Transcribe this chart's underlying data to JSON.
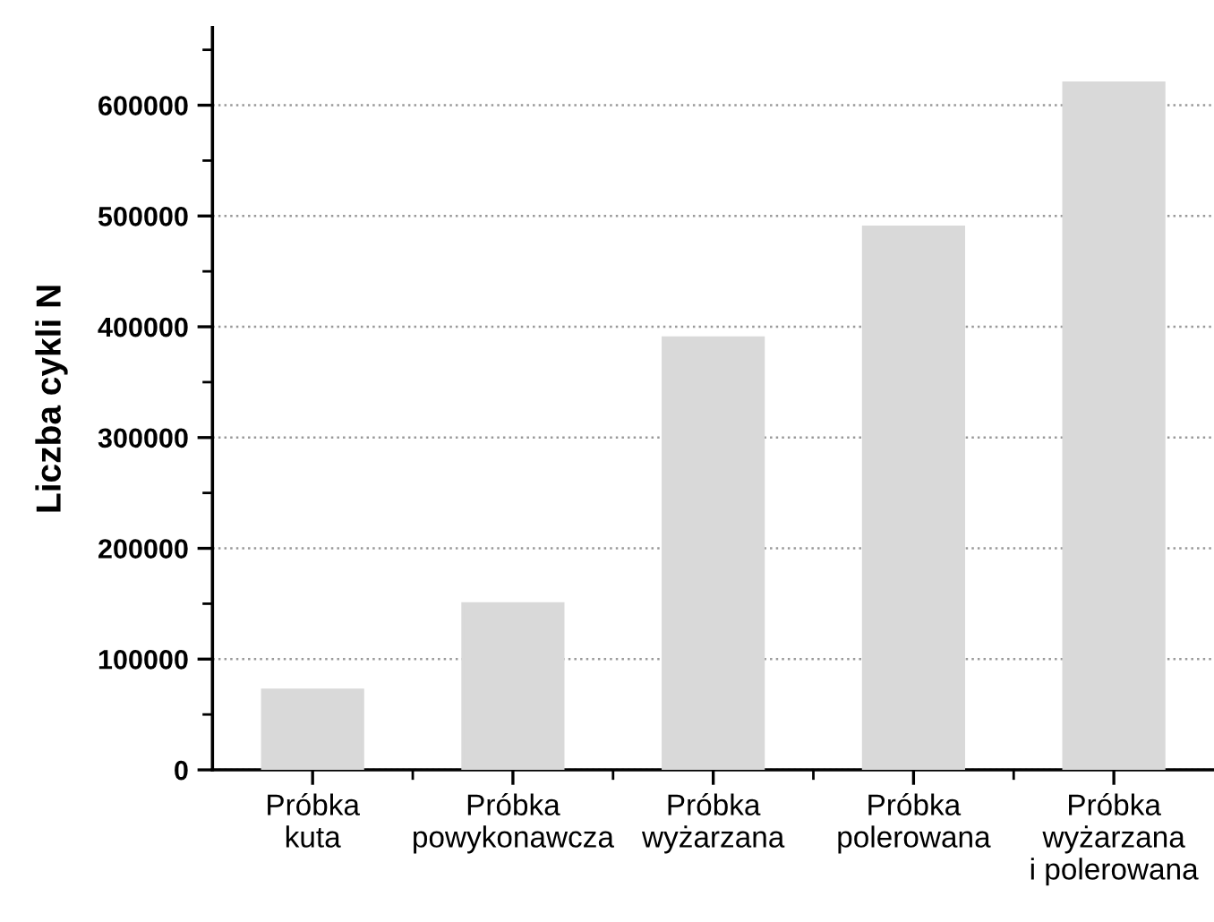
{
  "chart_data": {
    "type": "bar",
    "ylabel": "Liczba cykli N",
    "categories": [
      "Próbka\nkuta",
      "Próbka\npowykonawcza",
      "Próbka\nwyżarzana",
      "Próbka\npolerowana",
      "Próbka\nwyżarzana\ni polerowana"
    ],
    "values": [
      72000,
      150000,
      390000,
      490000,
      620000
    ],
    "color": "#d9d9d9",
    "ylim": [
      0,
      670000
    ],
    "yticks": [
      0,
      100000,
      200000,
      300000,
      400000,
      500000,
      600000
    ],
    "grid": "y"
  }
}
